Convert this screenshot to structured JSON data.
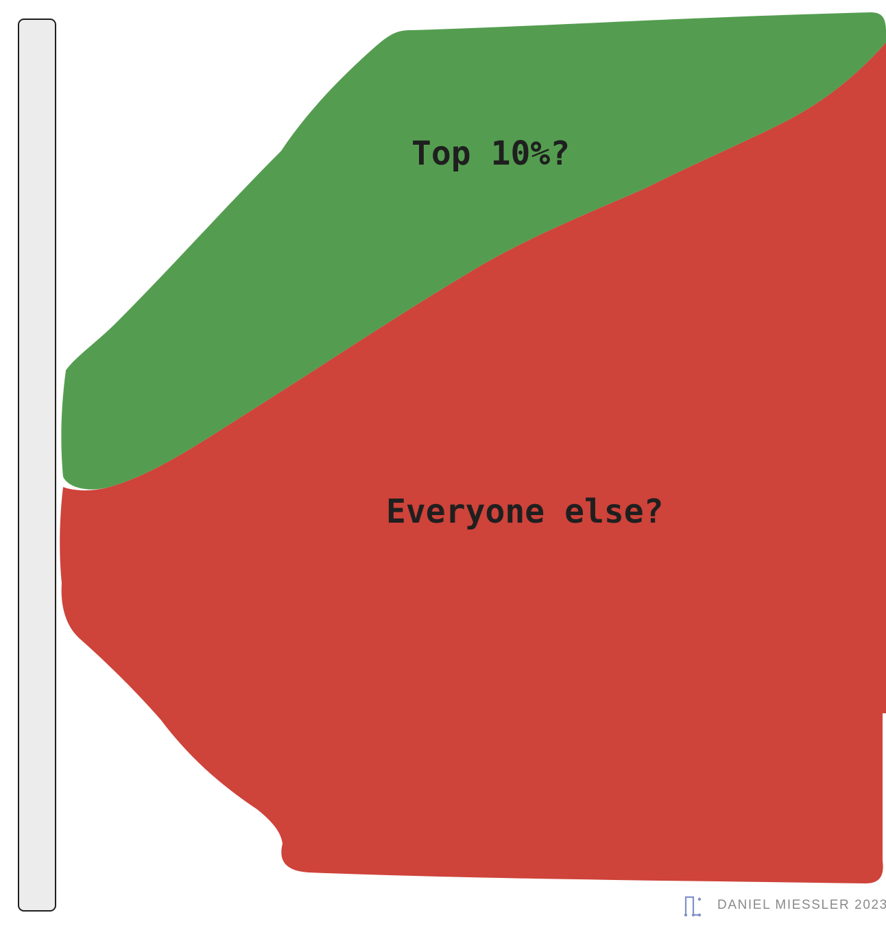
{
  "labels": {
    "top_group": "Top 10%?",
    "everyone_else": "Everyone else?"
  },
  "credit": {
    "text": "DANIEL MIESSLER 2023"
  },
  "colors": {
    "top_group_fill": "#549d50",
    "everyone_else_fill": "#ce433a",
    "bar_fill": "#ececec",
    "bar_stroke": "#1e1e1e",
    "label_text": "#1f1f1f",
    "credit_text": "#8a8a8a",
    "logo": "#7f91c9"
  },
  "icons": {
    "logo": "daniel-miessler-logo-icon"
  }
}
